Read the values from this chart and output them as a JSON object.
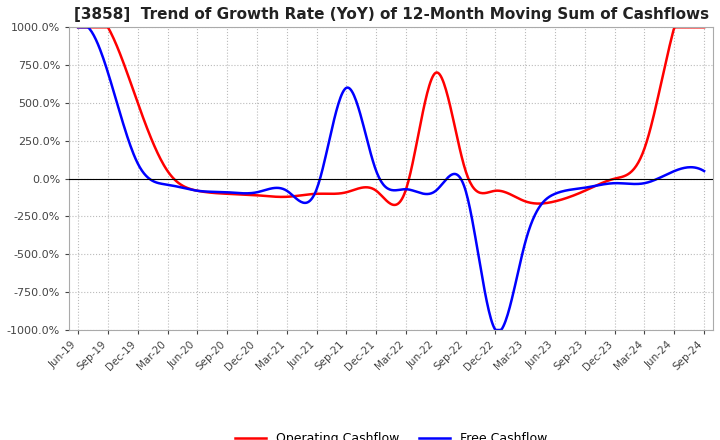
{
  "title": "[3858]  Trend of Growth Rate (YoY) of 12-Month Moving Sum of Cashflows",
  "title_fontsize": 11,
  "ylim": [
    -1000,
    1000
  ],
  "yticks": [
    -1000,
    -750,
    -500,
    -250,
    0,
    250,
    500,
    750,
    1000
  ],
  "ytick_labels": [
    "-1000.0%",
    "-750.0%",
    "-500.0%",
    "-250.0%",
    "0.0%",
    "250.0%",
    "500.0%",
    "750.0%",
    "1000.0%"
  ],
  "background_color": "#ffffff",
  "grid_color": "#bbbbbb",
  "operating_color": "#ff0000",
  "free_color": "#0000ff",
  "x_labels": [
    "Jun-19",
    "Sep-19",
    "Dec-19",
    "Mar-20",
    "Jun-20",
    "Sep-20",
    "Dec-20",
    "Mar-21",
    "Jun-21",
    "Sep-21",
    "Dec-21",
    "Mar-22",
    "Jun-22",
    "Sep-22",
    "Dec-22",
    "Mar-23",
    "Jun-23",
    "Sep-23",
    "Dec-23",
    "Mar-24",
    "Jun-24",
    "Sep-24"
  ],
  "operating_cashflow": [
    1000,
    1000,
    500,
    50,
    -80,
    -100,
    -110,
    -120,
    -100,
    -90,
    -80,
    -70,
    700,
    50,
    -80,
    -150,
    -150,
    -80,
    0,
    200,
    1000,
    1000
  ],
  "free_cashflow": [
    1000,
    700,
    100,
    -40,
    -80,
    -90,
    -90,
    -80,
    -70,
    600,
    50,
    -70,
    -80,
    -80,
    -1000,
    -420,
    -100,
    -60,
    -30,
    -30,
    50,
    50
  ]
}
